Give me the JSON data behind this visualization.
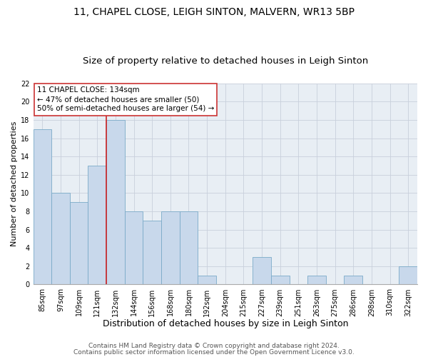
{
  "title": "11, CHAPEL CLOSE, LEIGH SINTON, MALVERN, WR13 5BP",
  "subtitle": "Size of property relative to detached houses in Leigh Sinton",
  "xlabel": "Distribution of detached houses by size in Leigh Sinton",
  "ylabel": "Number of detached properties",
  "footer_lines": [
    "Contains HM Land Registry data © Crown copyright and database right 2024.",
    "Contains public sector information licensed under the Open Government Licence v3.0."
  ],
  "bar_labels": [
    "85sqm",
    "97sqm",
    "109sqm",
    "121sqm",
    "132sqm",
    "144sqm",
    "156sqm",
    "168sqm",
    "180sqm",
    "192sqm",
    "204sqm",
    "215sqm",
    "227sqm",
    "239sqm",
    "251sqm",
    "263sqm",
    "275sqm",
    "286sqm",
    "298sqm",
    "310sqm",
    "322sqm"
  ],
  "bar_heights": [
    17,
    10,
    9,
    13,
    18,
    8,
    7,
    8,
    8,
    1,
    0,
    0,
    3,
    1,
    0,
    1,
    0,
    1,
    0,
    0,
    2
  ],
  "bar_color": "#c8d8eb",
  "bar_edge_color": "#7aaac8",
  "vline_x_index": 4,
  "vline_color": "#cc2222",
  "annotation_line1": "11 CHAPEL CLOSE: 134sqm",
  "annotation_line2": "← 47% of detached houses are smaller (50)",
  "annotation_line3": "50% of semi-detached houses are larger (54) →",
  "ylim": [
    0,
    22
  ],
  "yticks": [
    0,
    2,
    4,
    6,
    8,
    10,
    12,
    14,
    16,
    18,
    20,
    22
  ],
  "grid_color": "#c8d0dc",
  "bg_color": "#e8eef4",
  "title_fontsize": 10,
  "subtitle_fontsize": 9.5,
  "xlabel_fontsize": 9,
  "ylabel_fontsize": 8,
  "tick_fontsize": 7,
  "annotation_fontsize": 7.5,
  "footer_fontsize": 6.5
}
